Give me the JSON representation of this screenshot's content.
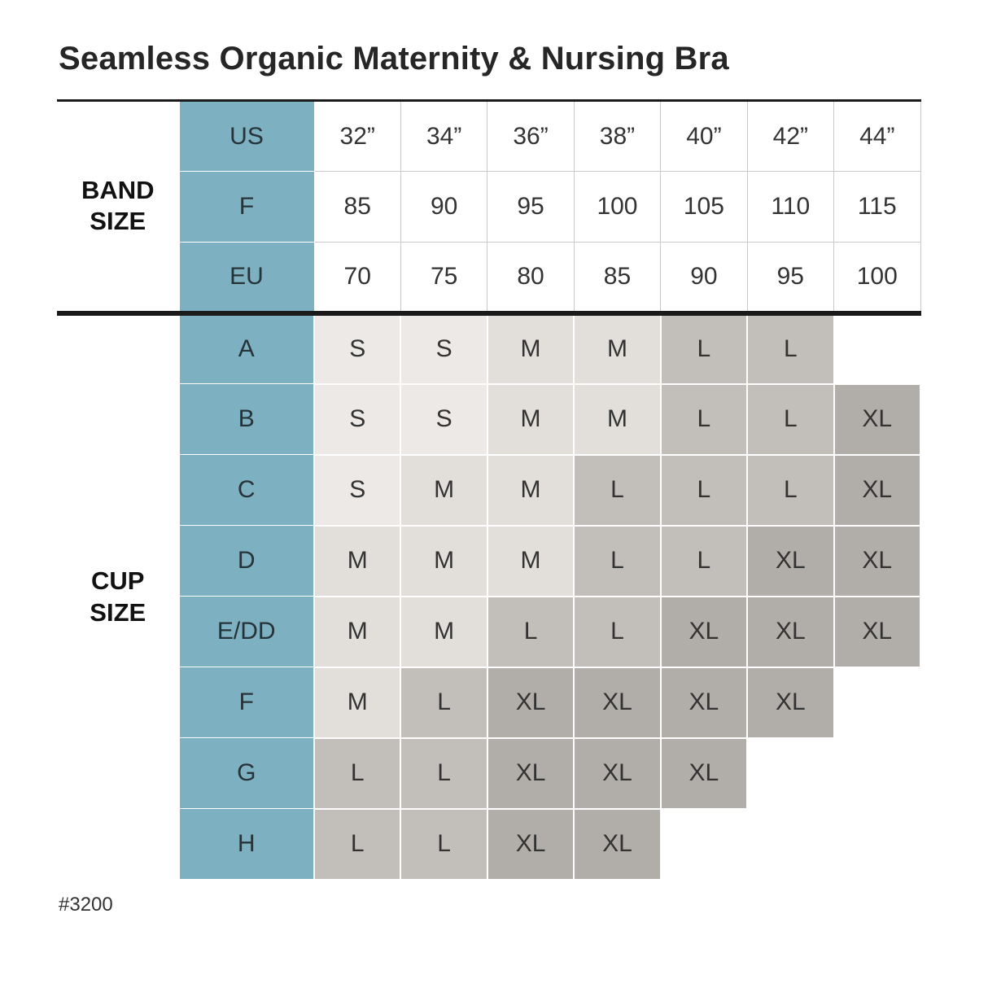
{
  "page": {
    "title": "Seamless Organic Maternity & Nursing Bra",
    "footnote": "#3200"
  },
  "table": {
    "band_group_label": "BAND\nSIZE",
    "cup_group_label": "CUP\nSIZE",
    "band_rows": [
      {
        "label": "US",
        "values": [
          "32”",
          "34”",
          "36”",
          "38”",
          "40”",
          "42”",
          "44”"
        ]
      },
      {
        "label": "F",
        "values": [
          "85",
          "90",
          "95",
          "100",
          "105",
          "110",
          "115"
        ]
      },
      {
        "label": "EU",
        "values": [
          "70",
          "75",
          "80",
          "85",
          "90",
          "95",
          "100"
        ]
      }
    ],
    "cup_rows": [
      {
        "label": "A",
        "values": [
          "S",
          "S",
          "M",
          "M",
          "L",
          "L",
          ""
        ]
      },
      {
        "label": "B",
        "values": [
          "S",
          "S",
          "M",
          "M",
          "L",
          "L",
          "XL"
        ]
      },
      {
        "label": "C",
        "values": [
          "S",
          "M",
          "M",
          "L",
          "L",
          "L",
          "XL"
        ]
      },
      {
        "label": "D",
        "values": [
          "M",
          "M",
          "M",
          "L",
          "L",
          "XL",
          "XL"
        ]
      },
      {
        "label": "E/DD",
        "values": [
          "M",
          "M",
          "L",
          "L",
          "XL",
          "XL",
          "XL"
        ]
      },
      {
        "label": "F",
        "values": [
          "M",
          "L",
          "XL",
          "XL",
          "XL",
          "XL",
          ""
        ]
      },
      {
        "label": "G",
        "values": [
          "L",
          "L",
          "XL",
          "XL",
          "XL",
          "",
          ""
        ]
      },
      {
        "label": "H",
        "values": [
          "L",
          "L",
          "XL",
          "XL",
          "",
          "",
          ""
        ]
      }
    ],
    "colors": {
      "label_column": "#7db0c0",
      "S": "#ece9e6",
      "M": "#e2dfdb",
      "L": "#c2beba",
      "XL": "#b1ada9",
      "empty": "#ffffff"
    }
  }
}
